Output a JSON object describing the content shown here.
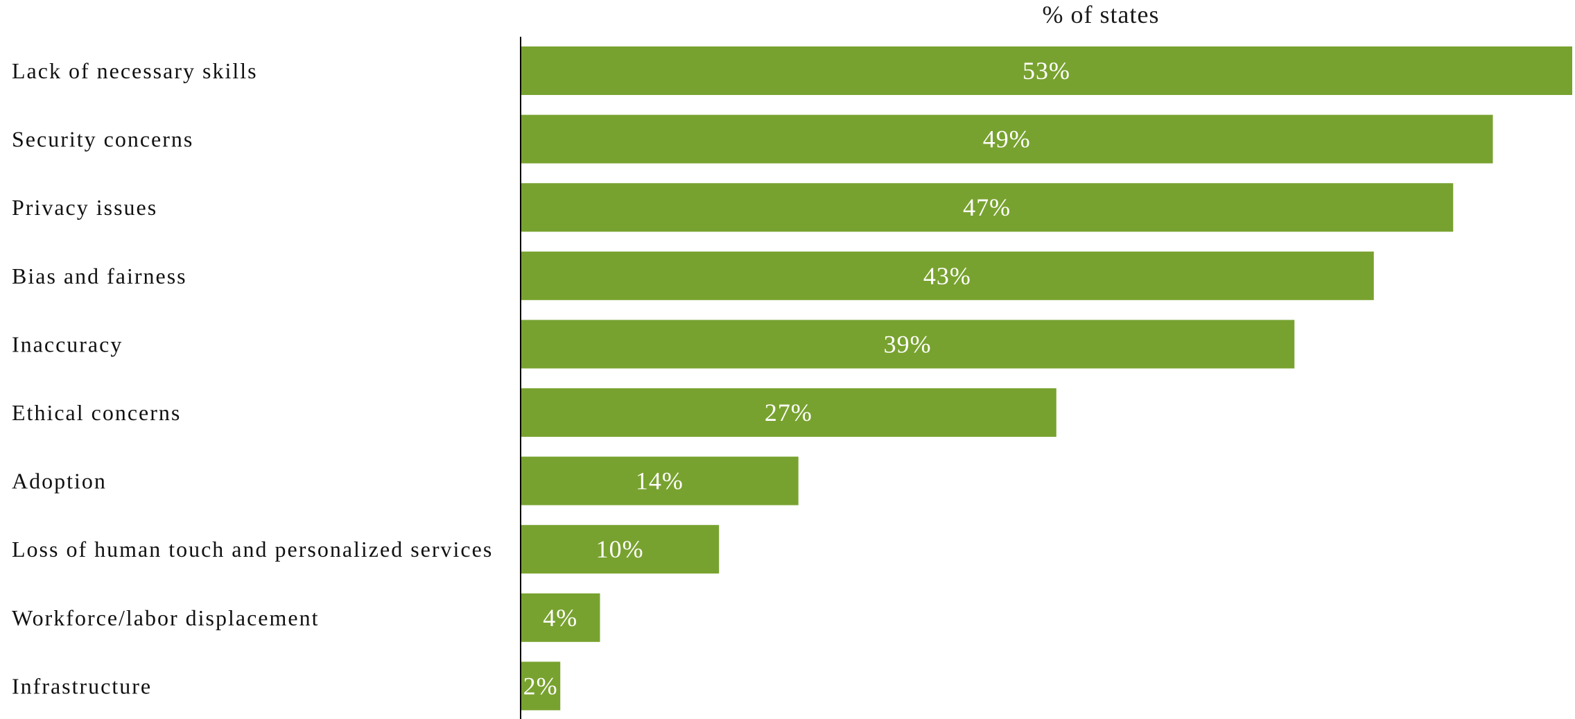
{
  "chart_data": {
    "type": "bar",
    "orientation": "horizontal",
    "title": "% of states",
    "xlabel": "",
    "ylabel": "",
    "categories": [
      "Lack of necessary skills",
      "Security concerns",
      "Privacy issues",
      "Bias and fairness",
      "Inaccuracy",
      "Ethical concerns",
      "Adoption",
      "Loss of human touch and personalized services",
      "Workforce/labor displacement",
      "Infrastructure"
    ],
    "values": [
      53,
      49,
      47,
      43,
      39,
      27,
      14,
      10,
      4,
      2
    ],
    "data_labels": [
      "53%",
      "49%",
      "47%",
      "43%",
      "39%",
      "27%",
      "14%",
      "10%",
      "4%",
      "2%"
    ],
    "xlim": [
      0,
      53
    ],
    "grid": false,
    "legend": "none",
    "bar_color": "#78a22f"
  }
}
